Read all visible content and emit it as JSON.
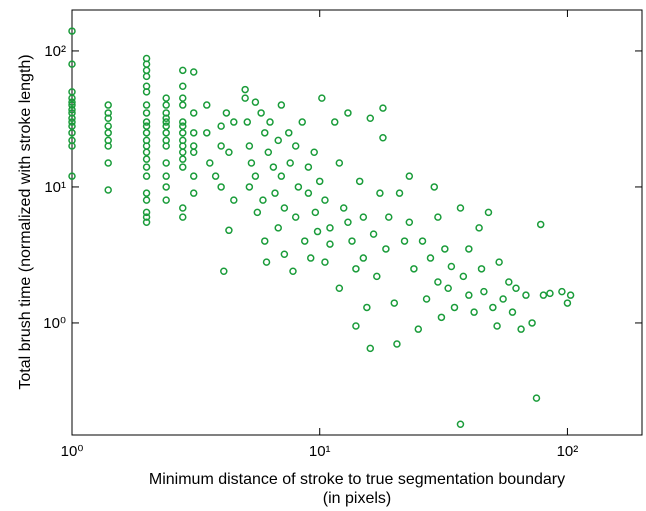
{
  "chart_data": {
    "type": "scatter",
    "xlabel": [
      "Minimum distance of stroke to true segmentation boundary",
      "(in pixels)"
    ],
    "ylabel": "Total brush time (normalized with stroke length)",
    "color": "#1a9c3a",
    "xlog": true,
    "ylog": true,
    "xlim": [
      1,
      200
    ],
    "ylim": [
      0.15,
      200
    ],
    "xticks": [
      {
        "value": 1,
        "label": "10⁰"
      },
      {
        "value": 10,
        "label": "10¹"
      },
      {
        "value": 100,
        "label": "10²"
      }
    ],
    "yticks": [
      {
        "value": 1,
        "label": "10⁰"
      },
      {
        "value": 10,
        "label": "10¹"
      },
      {
        "value": 100,
        "label": "10²"
      }
    ],
    "x": [
      1,
      1,
      1,
      1,
      1,
      1,
      1,
      1,
      1,
      1,
      1,
      1,
      1,
      1,
      1,
      1.4,
      1.4,
      1.4,
      1.4,
      1.4,
      1.4,
      1.4,
      1.4,
      1.4,
      2,
      2,
      2,
      2,
      2,
      2,
      2,
      2,
      2,
      2,
      2,
      2,
      2,
      2,
      2,
      2,
      2,
      2,
      2,
      2,
      2,
      2,
      2.4,
      2.4,
      2.4,
      2.4,
      2.4,
      2.4,
      2.4,
      2.4,
      2.4,
      2.4,
      2.4,
      2.4,
      2.4,
      2.8,
      2.8,
      2.8,
      2.8,
      2.8,
      2.8,
      2.8,
      2.8,
      2.8,
      2.8,
      2.8,
      2.8,
      2.8,
      2.8,
      3.1,
      3.1,
      3.1,
      3.1,
      3.1,
      3.1,
      3.1,
      3.5,
      3.5,
      3.6,
      3.8,
      4,
      4,
      4,
      4.2,
      4.3,
      4.5,
      4.5,
      4.3,
      4.1,
      5,
      5,
      5.1,
      5.2,
      5.3,
      5.2,
      5.5,
      5.5,
      5.6,
      5.8,
      5.9,
      6,
      6,
      6.1,
      6.2,
      6.3,
      6.5,
      6.6,
      6.8,
      6.8,
      7,
      7,
      7.2,
      7.2,
      7.5,
      7.6,
      7.8,
      8,
      8,
      8.2,
      8.5,
      8.7,
      9,
      9,
      9.2,
      9.5,
      9.6,
      9.8,
      10.2,
      10,
      10.5,
      10.5,
      11,
      11,
      11.5,
      12,
      12,
      12.5,
      13,
      13,
      13.5,
      14,
      14,
      14.5,
      15,
      15,
      15.5,
      16,
      16,
      16.5,
      17,
      17.5,
      18,
      18,
      18.5,
      19,
      20,
      20.5,
      21,
      22,
      23,
      23,
      24,
      25,
      26,
      27,
      28,
      29,
      30,
      30,
      31,
      32,
      33,
      34,
      35,
      37,
      37,
      38,
      40,
      40,
      42,
      44,
      45,
      46,
      48,
      50,
      52,
      53,
      55,
      58,
      60,
      62,
      65,
      68,
      72,
      75,
      78,
      80,
      85,
      95,
      100,
      103
    ],
    "values": [
      140,
      80,
      50,
      45,
      42,
      40,
      37,
      35,
      32,
      30,
      28,
      25,
      22,
      20,
      12,
      40,
      35,
      32,
      28,
      25,
      22,
      20,
      15,
      9.5,
      88,
      80,
      72,
      65,
      55,
      50,
      40,
      35,
      30,
      28,
      25,
      22,
      20,
      18,
      16,
      14,
      12,
      9,
      8,
      6.5,
      6,
      5.5,
      45,
      40,
      35,
      32,
      30,
      28,
      25,
      22,
      20,
      15,
      12,
      10,
      8,
      72,
      55,
      45,
      40,
      30,
      28,
      25,
      22,
      20,
      18,
      16,
      14,
      7,
      6,
      70,
      35,
      25,
      20,
      18,
      12,
      9,
      40,
      25,
      15,
      12,
      28,
      20,
      10,
      35,
      18,
      30,
      8,
      4.8,
      2.4,
      52,
      45,
      30,
      20,
      15,
      10,
      42,
      12,
      6.5,
      35,
      8,
      25,
      4,
      2.8,
      18,
      30,
      14,
      9,
      22,
      5,
      40,
      12,
      7,
      3.2,
      25,
      15,
      2.4,
      20,
      6,
      10,
      30,
      4,
      14,
      9,
      3,
      18,
      6.5,
      4.7,
      45,
      11,
      8,
      2.8,
      5,
      3.8,
      30,
      15,
      1.8,
      7,
      35,
      5.5,
      4,
      2.5,
      0.95,
      11,
      6,
      3,
      1.3,
      32,
      0.65,
      4.5,
      2.2,
      9,
      38,
      23,
      3.5,
      6,
      1.4,
      0.7,
      9,
      4,
      5.5,
      12,
      2.5,
      0.9,
      4,
      1.5,
      3,
      10,
      2,
      6,
      1.1,
      3.5,
      1.8,
      2.6,
      1.3,
      7,
      0.18,
      2.2,
      1.6,
      3.5,
      1.2,
      5,
      2.5,
      1.7,
      6.5,
      1.3,
      0.95,
      2.8,
      1.5,
      2,
      1.2,
      1.8,
      0.9,
      1.6,
      1,
      0.28,
      5.3,
      1.6,
      1.65,
      1.7,
      1.4,
      1.6
    ]
  }
}
